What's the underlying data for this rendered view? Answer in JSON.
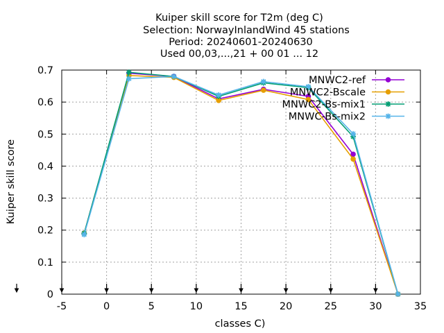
{
  "chart_data": {
    "type": "line",
    "title_lines": [
      "Kuiper skill score  for T2m (deg C)",
      "Selection: NorwayInlandWind     45 stations",
      "Period: 20240601-20240630",
      "Used 00,03,...,21 + 00 01 ... 12"
    ],
    "xlabel": "classes C)",
    "ylabel": "Kuiper skill score",
    "xlim": [
      -5,
      35
    ],
    "ylim": [
      0,
      0.7
    ],
    "xticks": [
      -5,
      0,
      5,
      10,
      15,
      20,
      25,
      30,
      35
    ],
    "xtick_labels": [
      "-5",
      "0",
      "5",
      "10",
      "15",
      "20",
      "25",
      "30",
      "35"
    ],
    "yticks": [
      0,
      0.1,
      0.2,
      0.3,
      0.4,
      0.5,
      0.6,
      0.7
    ],
    "ytick_labels": [
      "0",
      "0.1",
      "0.2",
      "0.3",
      "0.4",
      "0.5",
      "0.6",
      "0.7"
    ],
    "grid": true,
    "legend_position": "top-right",
    "arrow_marks_x": [
      -5,
      0,
      5,
      10,
      15,
      20,
      25,
      30
    ],
    "x": [
      -2.5,
      2.5,
      7.5,
      12.5,
      17.5,
      22.5,
      27.5,
      32.5
    ],
    "series": [
      {
        "name": "MNWC2-ref",
        "color": "#9400d3",
        "marker": "circle",
        "values": [
          0.19,
          0.69,
          0.68,
          0.61,
          0.64,
          0.618,
          0.437,
          0.0
        ]
      },
      {
        "name": "MNWC2-Bscale",
        "color": "#e69f00",
        "marker": "circle",
        "values": [
          0.19,
          0.683,
          0.677,
          0.605,
          0.637,
          0.608,
          0.422,
          0.0
        ]
      },
      {
        "name": "MNWC2-Bs-mix1",
        "color": "#009e73",
        "marker": "star",
        "values": [
          0.19,
          0.693,
          0.68,
          0.618,
          0.66,
          0.645,
          0.492,
          0.0
        ]
      },
      {
        "name": "MNWC-Bs-mix2",
        "color": "#56b4e9",
        "marker": "star",
        "values": [
          0.186,
          0.673,
          0.68,
          0.622,
          0.664,
          0.648,
          0.501,
          0.0
        ]
      }
    ]
  }
}
